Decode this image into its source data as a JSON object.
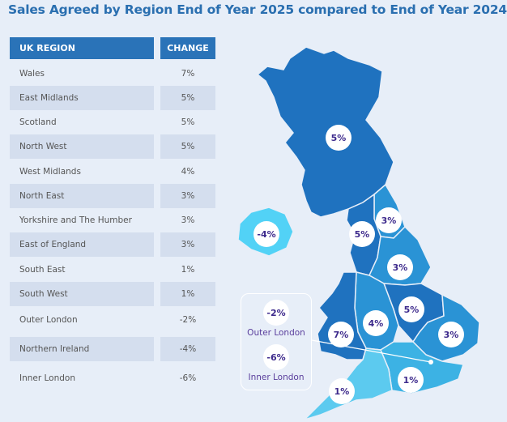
{
  "title": "Sales Agreed by Region End of Year 2025 compared to End of Year 2024",
  "chart_data": {
    "type": "table",
    "columns": [
      "UK REGION",
      "CHANGE"
    ],
    "rows": [
      {
        "region": "Wales",
        "change": "7%"
      },
      {
        "region": "East Midlands",
        "change": "5%"
      },
      {
        "region": "Scotland",
        "change": "5%"
      },
      {
        "region": "North West",
        "change": "5%"
      },
      {
        "region": "West Midlands",
        "change": "4%"
      },
      {
        "region": "North East",
        "change": "3%"
      },
      {
        "region": "Yorkshire and The Humber",
        "change": "3%"
      },
      {
        "region": "East of England",
        "change": "3%"
      },
      {
        "region": "South East",
        "change": "1%"
      },
      {
        "region": "South West",
        "change": "1%"
      },
      {
        "region": "Outer London",
        "change": "-2%"
      },
      {
        "region": "Northern Ireland",
        "change": "-4%"
      },
      {
        "region": "Inner London",
        "change": "-6%"
      }
    ]
  },
  "map": {
    "badges": {
      "scotland": "5%",
      "northern_ireland": "-4%",
      "north_east": "3%",
      "north_west": "5%",
      "yorkshire": "3%",
      "east_midlands": "5%",
      "west_midlands": "4%",
      "wales": "7%",
      "east_of_england": "3%",
      "south_east": "1%",
      "south_west": "1%"
    },
    "london": {
      "outer_value": "-2%",
      "outer_label": "Outer London",
      "inner_value": "-6%",
      "inner_label": "Inner London"
    },
    "colors": {
      "dark": "#1f72bf",
      "mid": "#2a93d5",
      "light": "#3cb2e4",
      "lighter": "#5ccaef",
      "ni": "#52d2f6",
      "badge_text": "#3d2a8c"
    }
  }
}
